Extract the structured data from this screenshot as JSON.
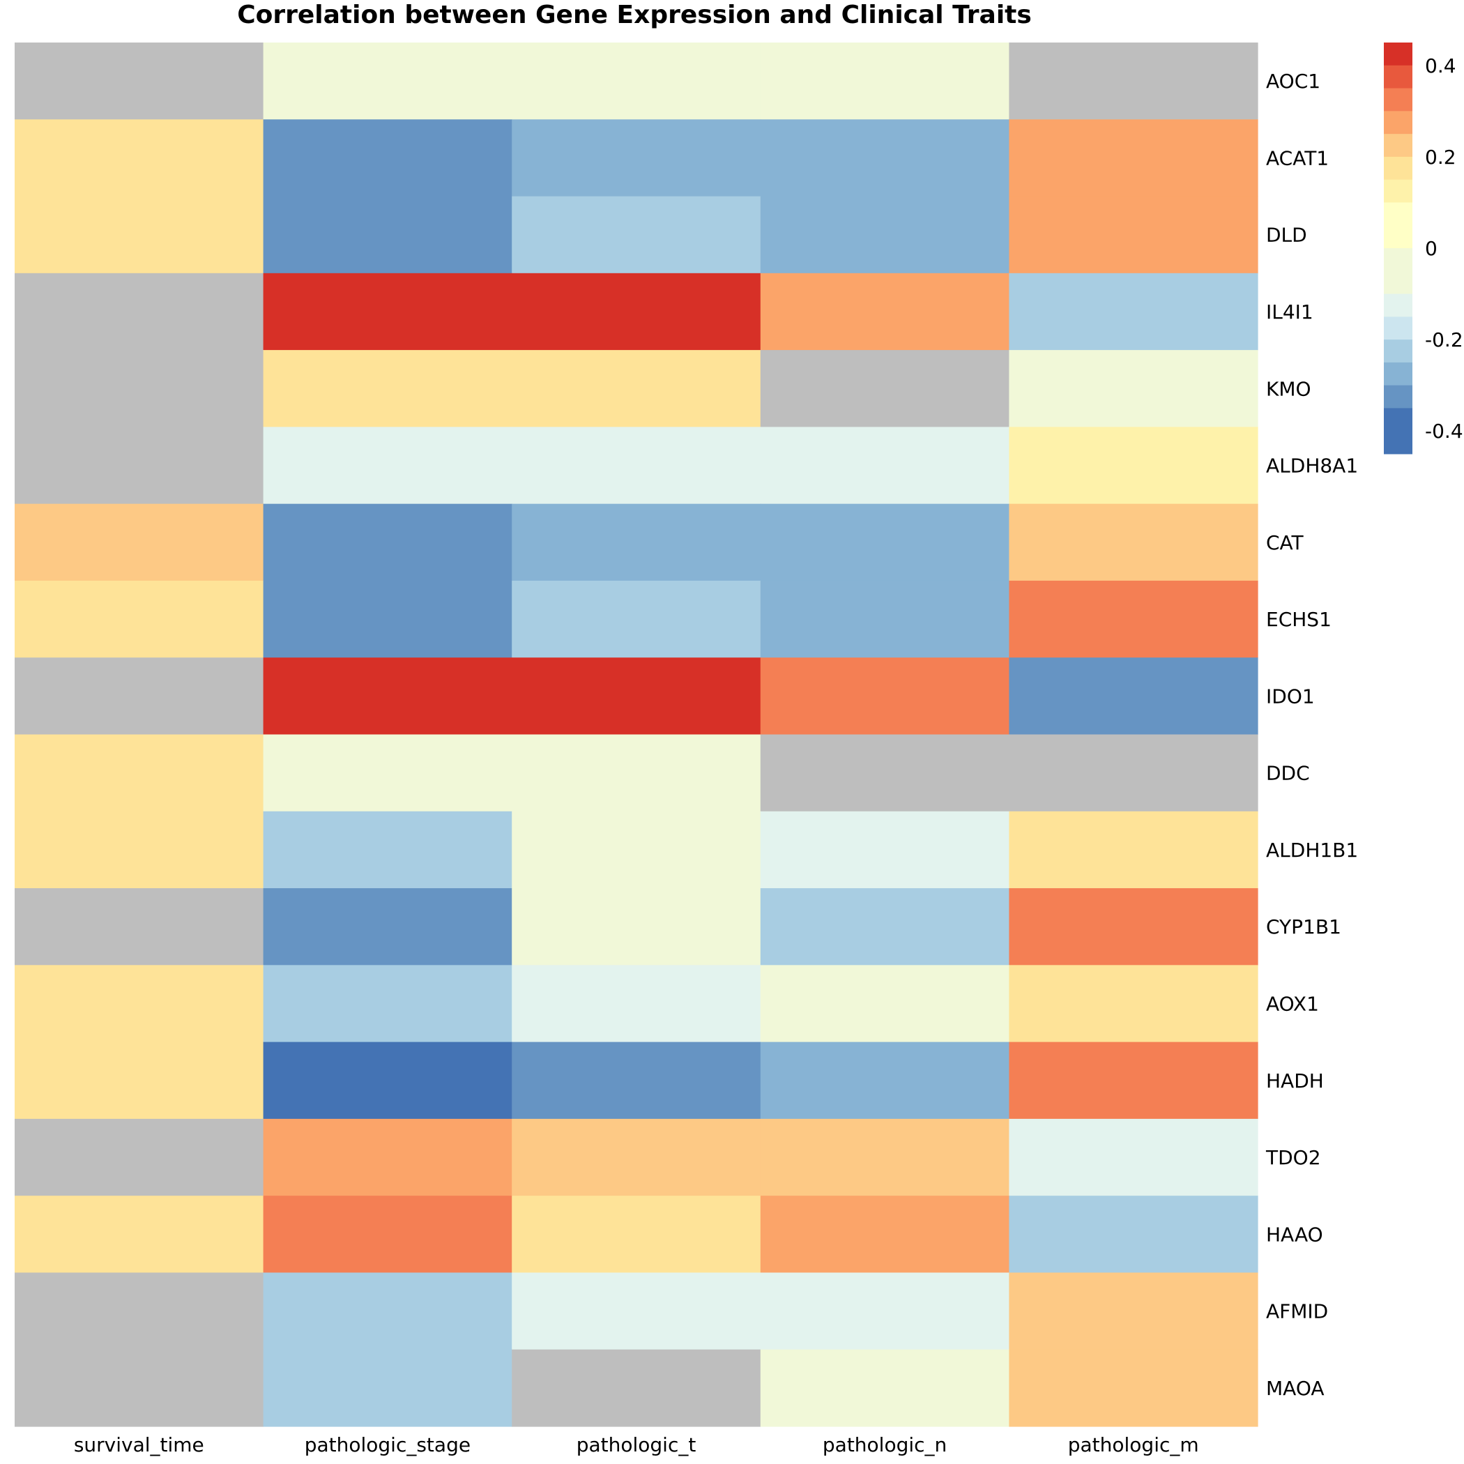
{
  "chart_data": {
    "type": "heatmap",
    "title": "Correlation between Gene Expression and Clinical Traits",
    "columns": [
      "survival_time",
      "pathologic_stage",
      "pathologic_t",
      "pathologic_n",
      "pathologic_m"
    ],
    "rows": [
      "AOC1",
      "ACAT1",
      "DLD",
      "IL4I1",
      "KMO",
      "ALDH8A1",
      "CAT",
      "ECHS1",
      "IDO1",
      "DDC",
      "ALDH1B1",
      "CYP1B1",
      "AOX1",
      "HADH",
      "TDO2",
      "HAAO",
      "AFMID",
      "MAOA"
    ],
    "values": [
      [
        null,
        -0.1,
        -0.1,
        -0.05,
        null
      ],
      [
        0.15,
        -0.35,
        -0.3,
        -0.3,
        0.25
      ],
      [
        0.15,
        -0.35,
        -0.25,
        -0.3,
        0.25
      ],
      [
        null,
        0.45,
        0.4,
        0.25,
        -0.25
      ],
      [
        null,
        0.15,
        0.15,
        null,
        -0.05
      ],
      [
        null,
        -0.15,
        -0.15,
        -0.15,
        0.1
      ],
      [
        0.2,
        -0.35,
        -0.3,
        -0.3,
        0.2
      ],
      [
        0.15,
        -0.35,
        -0.25,
        -0.3,
        0.3
      ],
      [
        null,
        0.45,
        0.4,
        0.3,
        -0.35
      ],
      [
        0.15,
        -0.1,
        -0.1,
        null,
        null
      ],
      [
        0.15,
        -0.25,
        -0.1,
        -0.15,
        0.15
      ],
      [
        null,
        -0.35,
        -0.1,
        -0.25,
        0.3
      ],
      [
        0.15,
        -0.25,
        -0.15,
        -0.1,
        0.15
      ],
      [
        0.15,
        -0.45,
        -0.35,
        -0.3,
        0.3
      ],
      [
        null,
        0.25,
        0.2,
        0.2,
        -0.15
      ],
      [
        0.15,
        0.3,
        0.15,
        0.25,
        -0.25
      ],
      [
        null,
        -0.25,
        -0.15,
        -0.15,
        0.2
      ],
      [
        null,
        -0.25,
        null,
        -0.1,
        0.2
      ]
    ],
    "na_color": "#BEBEBE",
    "color_bins": [
      {
        "from": 0.4,
        "to": 0.45,
        "color": "#D73027"
      },
      {
        "from": 0.35,
        "to": 0.4,
        "color": "#E8593D"
      },
      {
        "from": 0.3,
        "to": 0.35,
        "color": "#F47F54"
      },
      {
        "from": 0.25,
        "to": 0.3,
        "color": "#FBA469"
      },
      {
        "from": 0.2,
        "to": 0.25,
        "color": "#FDC985"
      },
      {
        "from": 0.15,
        "to": 0.2,
        "color": "#FEE398"
      },
      {
        "from": 0.1,
        "to": 0.15,
        "color": "#FEF2AA"
      },
      {
        "from": 0.0,
        "to": 0.1,
        "color": "#FFFFC6"
      },
      {
        "from": -0.1,
        "to": 0.0,
        "color": "#F1F8D8"
      },
      {
        "from": -0.15,
        "to": -0.1,
        "color": "#E3F3EE"
      },
      {
        "from": -0.2,
        "to": -0.15,
        "color": "#CCE5EF"
      },
      {
        "from": -0.25,
        "to": -0.2,
        "color": "#A8CDE2"
      },
      {
        "from": -0.3,
        "to": -0.25,
        "color": "#87B3D4"
      },
      {
        "from": -0.35,
        "to": -0.3,
        "color": "#6694C3"
      },
      {
        "from": -0.45,
        "to": -0.35,
        "color": "#4473B4"
      }
    ],
    "legend": {
      "position": "top-right",
      "range": [
        -0.45,
        0.45
      ],
      "ticks": [
        {
          "value": 0.4,
          "label": "0.4"
        },
        {
          "value": 0.2,
          "label": "0.2"
        },
        {
          "value": 0,
          "label": "0"
        },
        {
          "value": -0.2,
          "label": "-0.2"
        },
        {
          "value": -0.4,
          "label": "-0.4"
        }
      ]
    }
  }
}
